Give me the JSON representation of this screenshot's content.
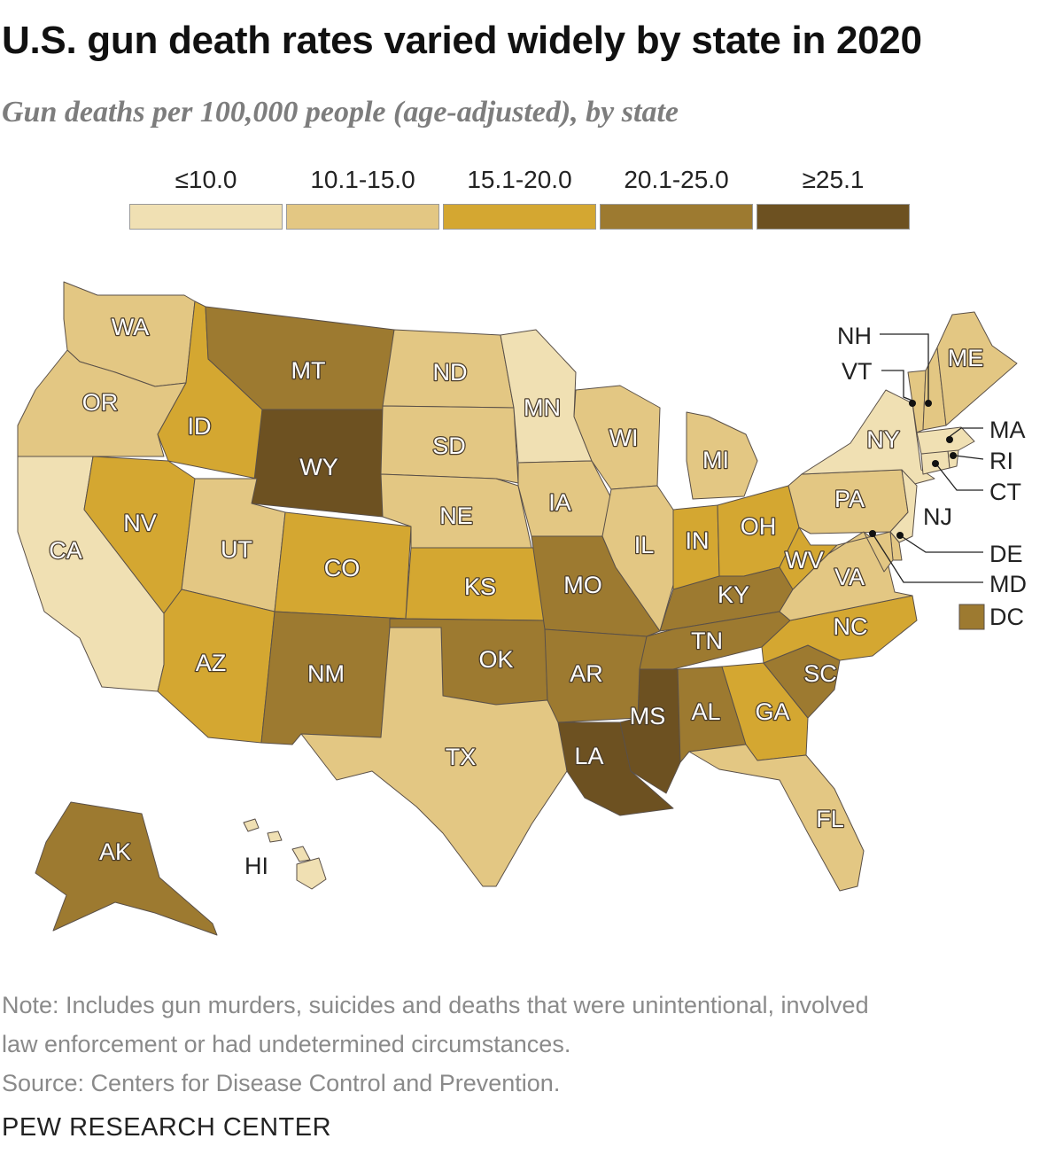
{
  "title": "U.S. gun death rates varied widely by state in 2020",
  "subtitle": "Gun deaths per 100,000 people (age-adjusted), by state",
  "legend": [
    {
      "label": "≤10.0",
      "color": "#f0e0b3"
    },
    {
      "label": "10.1-15.0",
      "color": "#e3c783"
    },
    {
      "label": "15.1-20.0",
      "color": "#d4a731"
    },
    {
      "label": "20.1-25.0",
      "color": "#9d7a30"
    },
    {
      "label": "≥25.1",
      "color": "#6d5121"
    }
  ],
  "states": [
    {
      "abbr": "WA",
      "class": 1
    },
    {
      "abbr": "OR",
      "class": 1
    },
    {
      "abbr": "CA",
      "class": 0
    },
    {
      "abbr": "ID",
      "class": 2
    },
    {
      "abbr": "NV",
      "class": 2
    },
    {
      "abbr": "MT",
      "class": 3
    },
    {
      "abbr": "WY",
      "class": 4
    },
    {
      "abbr": "UT",
      "class": 1
    },
    {
      "abbr": "AZ",
      "class": 2
    },
    {
      "abbr": "CO",
      "class": 2
    },
    {
      "abbr": "NM",
      "class": 3
    },
    {
      "abbr": "ND",
      "class": 1
    },
    {
      "abbr": "SD",
      "class": 1
    },
    {
      "abbr": "NE",
      "class": 1
    },
    {
      "abbr": "KS",
      "class": 2
    },
    {
      "abbr": "OK",
      "class": 3
    },
    {
      "abbr": "TX",
      "class": 1
    },
    {
      "abbr": "MN",
      "class": 0
    },
    {
      "abbr": "IA",
      "class": 1
    },
    {
      "abbr": "MO",
      "class": 3
    },
    {
      "abbr": "AR",
      "class": 3
    },
    {
      "abbr": "LA",
      "class": 4
    },
    {
      "abbr": "WI",
      "class": 1
    },
    {
      "abbr": "IL",
      "class": 1
    },
    {
      "abbr": "MI",
      "class": 1
    },
    {
      "abbr": "IN",
      "class": 2
    },
    {
      "abbr": "OH",
      "class": 2
    },
    {
      "abbr": "KY",
      "class": 3
    },
    {
      "abbr": "TN",
      "class": 3
    },
    {
      "abbr": "MS",
      "class": 4
    },
    {
      "abbr": "AL",
      "class": 3
    },
    {
      "abbr": "GA",
      "class": 2
    },
    {
      "abbr": "FL",
      "class": 1
    },
    {
      "abbr": "SC",
      "class": 3
    },
    {
      "abbr": "NC",
      "class": 2
    },
    {
      "abbr": "VA",
      "class": 1
    },
    {
      "abbr": "WV",
      "class": 2
    },
    {
      "abbr": "PA",
      "class": 1
    },
    {
      "abbr": "NY",
      "class": 0
    },
    {
      "abbr": "NJ",
      "class": 0
    },
    {
      "abbr": "DE",
      "class": 1
    },
    {
      "abbr": "MD",
      "class": 1
    },
    {
      "abbr": "DC",
      "class": 3
    },
    {
      "abbr": "CT",
      "class": 0
    },
    {
      "abbr": "RI",
      "class": 0
    },
    {
      "abbr": "MA",
      "class": 0
    },
    {
      "abbr": "VT",
      "class": 1
    },
    {
      "abbr": "NH",
      "class": 1
    },
    {
      "abbr": "ME",
      "class": 1
    },
    {
      "abbr": "AK",
      "class": 3
    },
    {
      "abbr": "HI",
      "class": 0
    }
  ],
  "note_lines": [
    "Note: Includes gun murders, suicides and deaths that were unintentional, involved",
    "law enforcement or had undetermined circumstances.",
    "Source: Centers for Disease Control and Prevention."
  ],
  "source_brand": "PEW RESEARCH CENTER"
}
